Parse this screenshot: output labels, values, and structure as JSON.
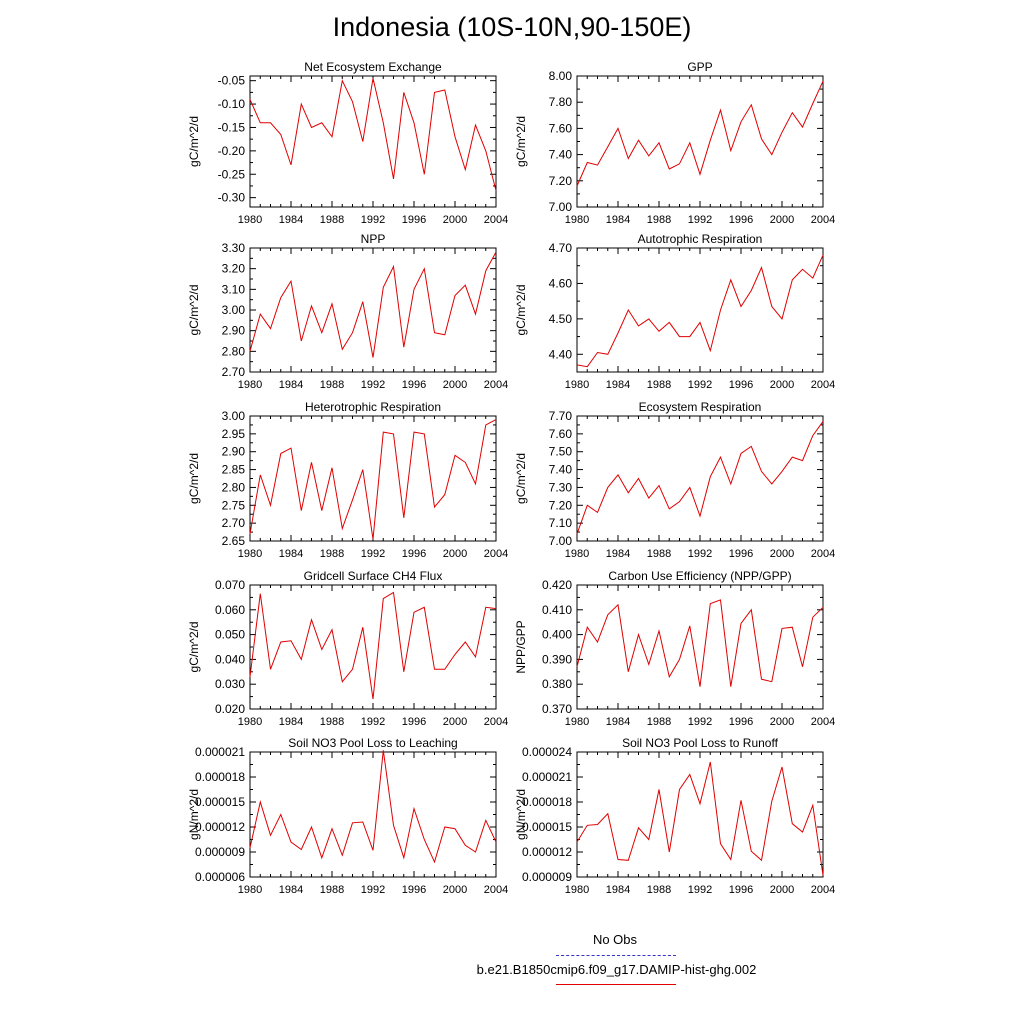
{
  "page": {
    "title": "Indonesia (10S-10N,90-150E)"
  },
  "legend": {
    "obs_label": "No Obs",
    "obs_color": "#3333cc",
    "model_label": "b.e21.B1850cmip6.f09_g17.DAMIP-hist-ghg.002",
    "model_color": "#e00000"
  },
  "chart_data": [
    {
      "type": "line",
      "title": "Net Ecosystem Exchange",
      "ylabel": "gC/m^2/d",
      "xlim": [
        1980,
        2004
      ],
      "ylim": [
        -0.32,
        -0.04
      ],
      "xticks": [
        "1980",
        "1984",
        "1988",
        "1992",
        "1996",
        "2000",
        "2004"
      ],
      "yticks": [
        "-0.05",
        "-0.10",
        "-0.15",
        "-0.20",
        "-0.25",
        "-0.30"
      ],
      "x": [
        1980,
        1981,
        1982,
        1983,
        1984,
        1985,
        1986,
        1987,
        1988,
        1989,
        1990,
        1991,
        1992,
        1993,
        1994,
        1995,
        1996,
        1997,
        1998,
        1999,
        2000,
        2001,
        2002,
        2003,
        2004
      ],
      "series": [
        {
          "values": [
            -0.09,
            -0.14,
            -0.14,
            -0.165,
            -0.23,
            -0.1,
            -0.15,
            -0.14,
            -0.17,
            -0.05,
            -0.095,
            -0.18,
            -0.045,
            -0.14,
            -0.26,
            -0.075,
            -0.14,
            -0.25,
            -0.075,
            -0.07,
            -0.17,
            -0.24,
            -0.145,
            -0.2,
            -0.285
          ]
        }
      ]
    },
    {
      "type": "line",
      "title": "GPP",
      "ylabel": "gC/m^2/d",
      "xlim": [
        1980,
        2004
      ],
      "ylim": [
        7.0,
        8.0
      ],
      "xticks": [
        "1980",
        "1984",
        "1988",
        "1992",
        "1996",
        "2000",
        "2004"
      ],
      "yticks": [
        "8.00",
        "7.80",
        "7.60",
        "7.40",
        "7.20",
        "7.00"
      ],
      "x": [
        1980,
        1981,
        1982,
        1983,
        1984,
        1985,
        1986,
        1987,
        1988,
        1989,
        1990,
        1991,
        1992,
        1993,
        1994,
        1995,
        1996,
        1997,
        1998,
        1999,
        2000,
        2001,
        2002,
        2003,
        2004
      ],
      "series": [
        {
          "values": [
            7.16,
            7.34,
            7.32,
            7.46,
            7.6,
            7.37,
            7.51,
            7.39,
            7.49,
            7.29,
            7.33,
            7.49,
            7.25,
            7.51,
            7.74,
            7.43,
            7.65,
            7.78,
            7.52,
            7.4,
            7.57,
            7.72,
            7.61,
            7.79,
            7.96
          ]
        }
      ]
    },
    {
      "type": "line",
      "title": "NPP",
      "ylabel": "gC/m^2/d",
      "xlim": [
        1980,
        2004
      ],
      "ylim": [
        2.7,
        3.3
      ],
      "xticks": [
        "1980",
        "1984",
        "1988",
        "1992",
        "1996",
        "2000",
        "2004"
      ],
      "yticks": [
        "3.30",
        "3.20",
        "3.10",
        "3.00",
        "2.90",
        "2.80",
        "2.70"
      ],
      "x": [
        1980,
        1981,
        1982,
        1983,
        1984,
        1985,
        1986,
        1987,
        1988,
        1989,
        1990,
        1991,
        1992,
        1993,
        1994,
        1995,
        1996,
        1997,
        1998,
        1999,
        2000,
        2001,
        2002,
        2003,
        2004
      ],
      "series": [
        {
          "values": [
            2.8,
            2.98,
            2.91,
            3.06,
            3.14,
            2.85,
            3.02,
            2.89,
            3.03,
            2.81,
            2.89,
            3.04,
            2.77,
            3.11,
            3.21,
            2.82,
            3.1,
            3.2,
            2.89,
            2.88,
            3.07,
            3.12,
            2.98,
            3.19,
            3.28
          ]
        }
      ]
    },
    {
      "type": "line",
      "title": "Autotrophic Respiration",
      "ylabel": "gC/m^2/d",
      "xlim": [
        1980,
        2004
      ],
      "ylim": [
        4.35,
        4.7
      ],
      "xticks": [
        "1980",
        "1984",
        "1988",
        "1992",
        "1996",
        "2000",
        "2004"
      ],
      "yticks": [
        "4.70",
        "4.60",
        "4.50",
        "4.40"
      ],
      "x": [
        1980,
        1981,
        1982,
        1983,
        1984,
        1985,
        1986,
        1987,
        1988,
        1989,
        1990,
        1991,
        1992,
        1993,
        1994,
        1995,
        1996,
        1997,
        1998,
        1999,
        2000,
        2001,
        2002,
        2003,
        2004
      ],
      "series": [
        {
          "values": [
            4.37,
            4.365,
            4.405,
            4.4,
            4.46,
            4.525,
            4.48,
            4.5,
            4.465,
            4.49,
            4.45,
            4.45,
            4.49,
            4.41,
            4.525,
            4.61,
            4.535,
            4.58,
            4.645,
            4.535,
            4.5,
            4.61,
            4.64,
            4.615,
            4.68
          ]
        }
      ]
    },
    {
      "type": "line",
      "title": "Heterotrophic Respiration",
      "ylabel": "gC/m^2/d",
      "xlim": [
        1980,
        2004
      ],
      "ylim": [
        2.65,
        3.0
      ],
      "xticks": [
        "1980",
        "1984",
        "1988",
        "1992",
        "1996",
        "2000",
        "2004"
      ],
      "yticks": [
        "3.00",
        "2.95",
        "2.90",
        "2.85",
        "2.80",
        "2.75",
        "2.70",
        "2.65"
      ],
      "x": [
        1980,
        1981,
        1982,
        1983,
        1984,
        1985,
        1986,
        1987,
        1988,
        1989,
        1990,
        1991,
        1992,
        1993,
        1994,
        1995,
        1996,
        1997,
        1998,
        1999,
        2000,
        2001,
        2002,
        2003,
        2004
      ],
      "series": [
        {
          "values": [
            2.67,
            2.835,
            2.75,
            2.895,
            2.91,
            2.735,
            2.87,
            2.735,
            2.855,
            2.685,
            2.765,
            2.85,
            2.655,
            2.955,
            2.95,
            2.715,
            2.955,
            2.95,
            2.745,
            2.78,
            2.89,
            2.87,
            2.81,
            2.975,
            2.99
          ]
        }
      ]
    },
    {
      "type": "line",
      "title": "Ecosystem Respiration",
      "ylabel": "gC/m^2/d",
      "xlim": [
        1980,
        2004
      ],
      "ylim": [
        7.0,
        7.7
      ],
      "xticks": [
        "1980",
        "1984",
        "1988",
        "1992",
        "1996",
        "2000",
        "2004"
      ],
      "yticks": [
        "7.70",
        "7.60",
        "7.50",
        "7.40",
        "7.30",
        "7.20",
        "7.10",
        "7.00"
      ],
      "x": [
        1980,
        1981,
        1982,
        1983,
        1984,
        1985,
        1986,
        1987,
        1988,
        1989,
        1990,
        1991,
        1992,
        1993,
        1994,
        1995,
        1996,
        1997,
        1998,
        1999,
        2000,
        2001,
        2002,
        2003,
        2004
      ],
      "series": [
        {
          "values": [
            7.04,
            7.2,
            7.16,
            7.3,
            7.37,
            7.27,
            7.35,
            7.24,
            7.31,
            7.18,
            7.22,
            7.3,
            7.14,
            7.36,
            7.47,
            7.32,
            7.49,
            7.53,
            7.39,
            7.32,
            7.39,
            7.47,
            7.45,
            7.59,
            7.67
          ]
        }
      ]
    },
    {
      "type": "line",
      "title": "Gridcell Surface CH4 Flux",
      "ylabel": "gC/m^2/d",
      "xlim": [
        1980,
        2004
      ],
      "ylim": [
        0.02,
        0.07
      ],
      "xticks": [
        "1980",
        "1984",
        "1988",
        "1992",
        "1996",
        "2000",
        "2004"
      ],
      "yticks": [
        "0.070",
        "0.060",
        "0.050",
        "0.040",
        "0.030",
        "0.020"
      ],
      "x": [
        1980,
        1981,
        1982,
        1983,
        1984,
        1985,
        1986,
        1987,
        1988,
        1989,
        1990,
        1991,
        1992,
        1993,
        1994,
        1995,
        1996,
        1997,
        1998,
        1999,
        2000,
        2001,
        2002,
        2003,
        2004
      ],
      "series": [
        {
          "values": [
            0.033,
            0.0665,
            0.036,
            0.047,
            0.0475,
            0.04,
            0.056,
            0.044,
            0.052,
            0.031,
            0.036,
            0.053,
            0.024,
            0.0645,
            0.067,
            0.035,
            0.059,
            0.061,
            0.036,
            0.036,
            0.042,
            0.047,
            0.041,
            0.061,
            0.0605
          ]
        }
      ]
    },
    {
      "type": "line",
      "title": "Carbon Use Efficiency (NPP/GPP)",
      "ylabel": "NPP/GPP",
      "xlim": [
        1980,
        2004
      ],
      "ylim": [
        0.37,
        0.42
      ],
      "xticks": [
        "1980",
        "1984",
        "1988",
        "1992",
        "1996",
        "2000",
        "2004"
      ],
      "yticks": [
        "0.420",
        "0.410",
        "0.400",
        "0.390",
        "0.380",
        "0.370"
      ],
      "x": [
        1980,
        1981,
        1982,
        1983,
        1984,
        1985,
        1986,
        1987,
        1988,
        1989,
        1990,
        1991,
        1992,
        1993,
        1994,
        1995,
        1996,
        1997,
        1998,
        1999,
        2000,
        2001,
        2002,
        2003,
        2004
      ],
      "series": [
        {
          "values": [
            0.387,
            0.403,
            0.397,
            0.408,
            0.412,
            0.385,
            0.4,
            0.388,
            0.4015,
            0.383,
            0.39,
            0.4035,
            0.379,
            0.4125,
            0.414,
            0.379,
            0.4045,
            0.41,
            0.382,
            0.381,
            0.4025,
            0.403,
            0.387,
            0.407,
            0.411
          ]
        }
      ]
    },
    {
      "type": "line",
      "title": "Soil NO3 Pool Loss to Leaching",
      "ylabel": "gN/m^2/d",
      "xlim": [
        1980,
        2004
      ],
      "ylim": [
        6e-06,
        2.1e-05
      ],
      "xticks": [
        "1980",
        "1984",
        "1988",
        "1992",
        "1996",
        "2000",
        "2004"
      ],
      "yticks": [
        "0.000021",
        "0.000018",
        "0.000015",
        "0.000012",
        "0.000009",
        "0.000006"
      ],
      "x": [
        1980,
        1981,
        1982,
        1983,
        1984,
        1985,
        1986,
        1987,
        1988,
        1989,
        1990,
        1991,
        1992,
        1993,
        1994,
        1995,
        1996,
        1997,
        1998,
        1999,
        2000,
        2001,
        2002,
        2003,
        2004
      ],
      "series": [
        {
          "values": [
            9.5e-06,
            1.5e-05,
            1.1e-05,
            1.35e-05,
            1.02e-05,
            9.3e-06,
            1.2e-05,
            8.3e-06,
            1.18e-05,
            8.6e-06,
            1.25e-05,
            1.26e-05,
            9.2e-06,
            2.12e-05,
            1.22e-05,
            8.3e-06,
            1.42e-05,
            1.05e-05,
            7.8e-06,
            1.2e-05,
            1.18e-05,
            9.8e-06,
            9e-06,
            1.28e-05,
            1.02e-05
          ]
        }
      ]
    },
    {
      "type": "line",
      "title": "Soil NO3 Pool Loss to Runoff",
      "ylabel": "gN/m^2/d",
      "xlim": [
        1980,
        2004
      ],
      "ylim": [
        9e-06,
        2.4e-05
      ],
      "xticks": [
        "1980",
        "1984",
        "1988",
        "1992",
        "1996",
        "2000",
        "2004"
      ],
      "yticks": [
        "0.000024",
        "0.000021",
        "0.000018",
        "0.000015",
        "0.000012",
        "0.000009"
      ],
      "x": [
        1980,
        1981,
        1982,
        1983,
        1984,
        1985,
        1986,
        1987,
        1988,
        1989,
        1990,
        1991,
        1992,
        1993,
        1994,
        1995,
        1996,
        1997,
        1998,
        1999,
        2000,
        2001,
        2002,
        2003,
        2004
      ],
      "series": [
        {
          "values": [
            1.32e-05,
            1.52e-05,
            1.53e-05,
            1.66e-05,
            1.11e-05,
            1.1e-05,
            1.49e-05,
            1.35e-05,
            1.95e-05,
            1.2e-05,
            1.95e-05,
            2.13e-05,
            1.78e-05,
            2.28e-05,
            1.3e-05,
            1.11e-05,
            1.82e-05,
            1.21e-05,
            1.1e-05,
            1.81e-05,
            2.22e-05,
            1.54e-05,
            1.44e-05,
            1.76e-05,
            9.2e-06
          ]
        }
      ]
    }
  ]
}
